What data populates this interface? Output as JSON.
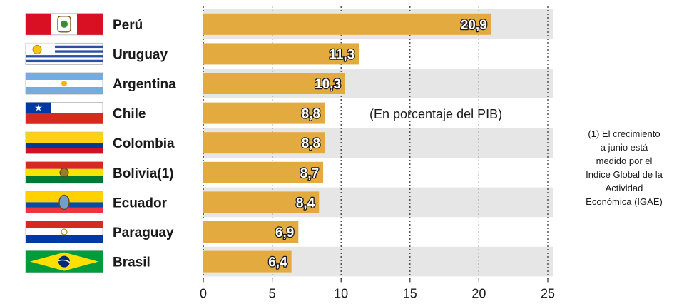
{
  "chart_data": {
    "type": "bar",
    "orientation": "horizontal",
    "categories": [
      "Perú",
      "Uruguay",
      "Argentina",
      "Chile",
      "Colombia",
      "Bolivia(1)",
      "Ecuador",
      "Paraguay",
      "Brasil"
    ],
    "values": [
      20.9,
      11.3,
      10.3,
      8.8,
      8.8,
      8.7,
      8.4,
      6.9,
      6.4
    ],
    "value_labels": [
      "20,9",
      "11,3",
      "10,3",
      "8,8",
      "8,8",
      "8,7",
      "8,4",
      "6,9",
      "6,4"
    ],
    "subtitle": "(En porcentaje del PIB)",
    "xlim": [
      0,
      25
    ],
    "x_ticks": [
      0,
      5,
      10,
      15,
      20,
      25
    ],
    "x_tick_labels": [
      "0",
      "5",
      "10",
      "15",
      "20",
      "25"
    ],
    "grid": "vertical dotted",
    "bar_color": "#E3AA3F",
    "stripe_color": "#E6E6E6"
  },
  "flags": [
    {
      "country": "Perú",
      "icon": "peru-flag-icon"
    },
    {
      "country": "Uruguay",
      "icon": "uruguay-flag-icon"
    },
    {
      "country": "Argentina",
      "icon": "argentina-flag-icon"
    },
    {
      "country": "Chile",
      "icon": "chile-flag-icon"
    },
    {
      "country": "Colombia",
      "icon": "colombia-flag-icon"
    },
    {
      "country": "Bolivia(1)",
      "icon": "bolivia-flag-icon"
    },
    {
      "country": "Ecuador",
      "icon": "ecuador-flag-icon"
    },
    {
      "country": "Paraguay",
      "icon": "paraguay-flag-icon"
    },
    {
      "country": "Brasil",
      "icon": "brazil-flag-icon"
    }
  ],
  "footnote": {
    "lines": [
      "(1) El crecimiento",
      "a junio está",
      "medido por el",
      "Indice Global de la",
      "Actividad",
      "Económica (IGAE)"
    ]
  }
}
